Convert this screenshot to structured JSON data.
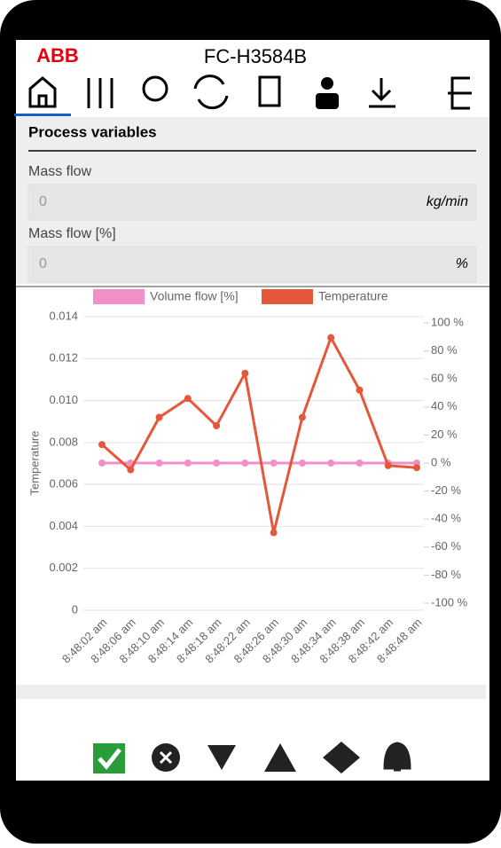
{
  "header": {
    "logo": "ABB",
    "device": "FC-H3584B"
  },
  "section_title": "Process variables",
  "fields": [
    {
      "label": "Mass flow",
      "value": "0",
      "unit": "kg/min"
    },
    {
      "label": "Mass flow [%]",
      "value": "0",
      "unit": "%"
    }
  ],
  "chart_data": {
    "type": "line",
    "y_label": "Temperature",
    "categories": [
      "8:48:02 am",
      "8:48:06 am",
      "8:48:10 am",
      "8:48:14 am",
      "8:48:18 am",
      "8:48:22 am",
      "8:48:26 am",
      "8:48:30 am",
      "8:48:34 am",
      "8:48:38 am",
      "8:48:42 am",
      "8:48:48 am"
    ],
    "series": [
      {
        "name": "Volume flow [%]",
        "color": "#f08fc8",
        "axis": "y2",
        "values": [
          0,
          0,
          0,
          0,
          0,
          0,
          0,
          0,
          0,
          0,
          0,
          0
        ]
      },
      {
        "name": "Temperature",
        "color": "#e5573a",
        "values": [
          0.0079,
          0.0067,
          0.0092,
          0.0101,
          0.0088,
          0.0113,
          0.0037,
          0.0092,
          0.013,
          0.0105,
          0.0069,
          0.0068
        ]
      }
    ],
    "ylim": [
      0,
      0.014
    ],
    "yticks": [
      0,
      0.002,
      0.004,
      0.006,
      0.008,
      {
        "value": 0.01,
        "label": "0.010"
      },
      0.012,
      0.014
    ],
    "y2lim": [
      -100,
      100
    ],
    "y2ticks": [
      {
        "value": -100,
        "label": "-100 %"
      },
      {
        "value": -80,
        "label": "-80 %"
      },
      {
        "value": -60,
        "label": "-60 %"
      },
      {
        "value": -40,
        "label": "-40 %"
      },
      {
        "value": -20,
        "label": "-20 %"
      },
      {
        "value": 0,
        "label": "0 %"
      },
      {
        "value": 20,
        "label": "20 %"
      },
      {
        "value": 40,
        "label": "40 %"
      },
      {
        "value": 60,
        "label": "60 %"
      },
      {
        "value": 80,
        "label": "80 %"
      },
      {
        "value": 100,
        "label": "100 %"
      }
    ],
    "grid": true,
    "legend": "top"
  }
}
